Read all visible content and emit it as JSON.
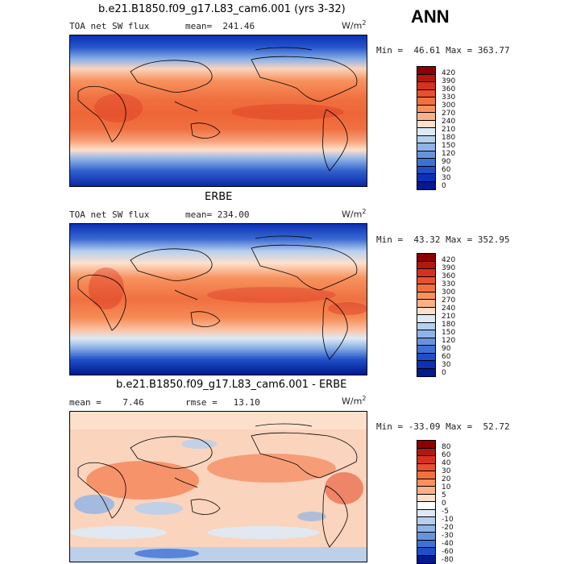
{
  "season": "ANN",
  "panels": [
    {
      "title": "b.e21.B1850.f09_g17.L83_cam6.001 (yrs 3-32)",
      "left_label": "TOA net SW flux",
      "center_label": "mean=  241.46",
      "units": "W/m",
      "units_exp": "2",
      "minmax": "Min =  46.61 Max = 363.77",
      "colorbar_ticks": [
        "420",
        "390",
        "360",
        "330",
        "300",
        "270",
        "240",
        "210",
        "180",
        "150",
        "120",
        "90",
        "60",
        "30",
        "0"
      ],
      "colorbar_colors": [
        "#8b0000",
        "#b2180e",
        "#d7301f",
        "#e8502f",
        "#f2703f",
        "#f7925e",
        "#fbb08a",
        "#fde0cc",
        "#ddeaf6",
        "#b5cfee",
        "#8fb3e6",
        "#6893dc",
        "#4070d4",
        "#1f4fc8",
        "#0c30b6",
        "#001a8f"
      ]
    },
    {
      "title": "ERBE",
      "left_label": "TOA net SW flux",
      "center_label": "mean= 234.00",
      "units": "W/m",
      "units_exp": "2",
      "minmax": "Min =  43.32 Max = 352.95",
      "colorbar_ticks": [
        "420",
        "390",
        "360",
        "330",
        "300",
        "270",
        "240",
        "210",
        "180",
        "150",
        "120",
        "90",
        "60",
        "30",
        "0"
      ],
      "colorbar_colors": [
        "#8b0000",
        "#b2180e",
        "#d7301f",
        "#e8502f",
        "#f2703f",
        "#f7925e",
        "#fbb08a",
        "#fde0cc",
        "#ddeaf6",
        "#b5cfee",
        "#8fb3e6",
        "#6893dc",
        "#4070d4",
        "#1f4fc8",
        "#0c30b6",
        "#001a8f"
      ]
    },
    {
      "title": "b.e21.B1850.f09_g17.L83_cam6.001 - ERBE",
      "left_label": "mean =    7.46",
      "center_label": "rmse =   13.10",
      "units": "W/m",
      "units_exp": "2",
      "minmax": "Min = -33.09 Max =  52.72",
      "colorbar_ticks": [
        "80",
        "60",
        "40",
        "30",
        "20",
        "10",
        "5",
        "0",
        "-5",
        "-10",
        "-20",
        "-30",
        "-40",
        "-60",
        "-80"
      ],
      "colorbar_colors": [
        "#8b0000",
        "#b2180e",
        "#d7301f",
        "#e8502f",
        "#f2703f",
        "#f7925e",
        "#fbb08a",
        "#fde0cc",
        "#ffffff",
        "#ddeaf6",
        "#b5cfee",
        "#8fb3e6",
        "#6893dc",
        "#4070d4",
        "#1f4fc8",
        "#001a8f"
      ]
    }
  ],
  "chart_data": [
    {
      "type": "heatmap",
      "title": "b.e21.B1850.f09_g17.L83_cam6.001 (yrs 3-32)",
      "variable": "TOA net SW flux",
      "units": "W/m2",
      "mean": 241.46,
      "min": 46.61,
      "max": 363.77,
      "levels": [
        0,
        30,
        60,
        90,
        120,
        150,
        180,
        210,
        240,
        270,
        300,
        330,
        360,
        390,
        420
      ]
    },
    {
      "type": "heatmap",
      "title": "ERBE",
      "variable": "TOA net SW flux",
      "units": "W/m2",
      "mean": 234.0,
      "min": 43.32,
      "max": 352.95,
      "levels": [
        0,
        30,
        60,
        90,
        120,
        150,
        180,
        210,
        240,
        270,
        300,
        330,
        360,
        390,
        420
      ]
    },
    {
      "type": "heatmap",
      "title": "b.e21.B1850.f09_g17.L83_cam6.001 - ERBE",
      "units": "W/m2",
      "mean": 7.46,
      "rmse": 13.1,
      "min": -33.09,
      "max": 52.72,
      "levels": [
        -80,
        -60,
        -40,
        -30,
        -20,
        -10,
        -5,
        0,
        5,
        10,
        20,
        30,
        40,
        60,
        80
      ]
    }
  ]
}
